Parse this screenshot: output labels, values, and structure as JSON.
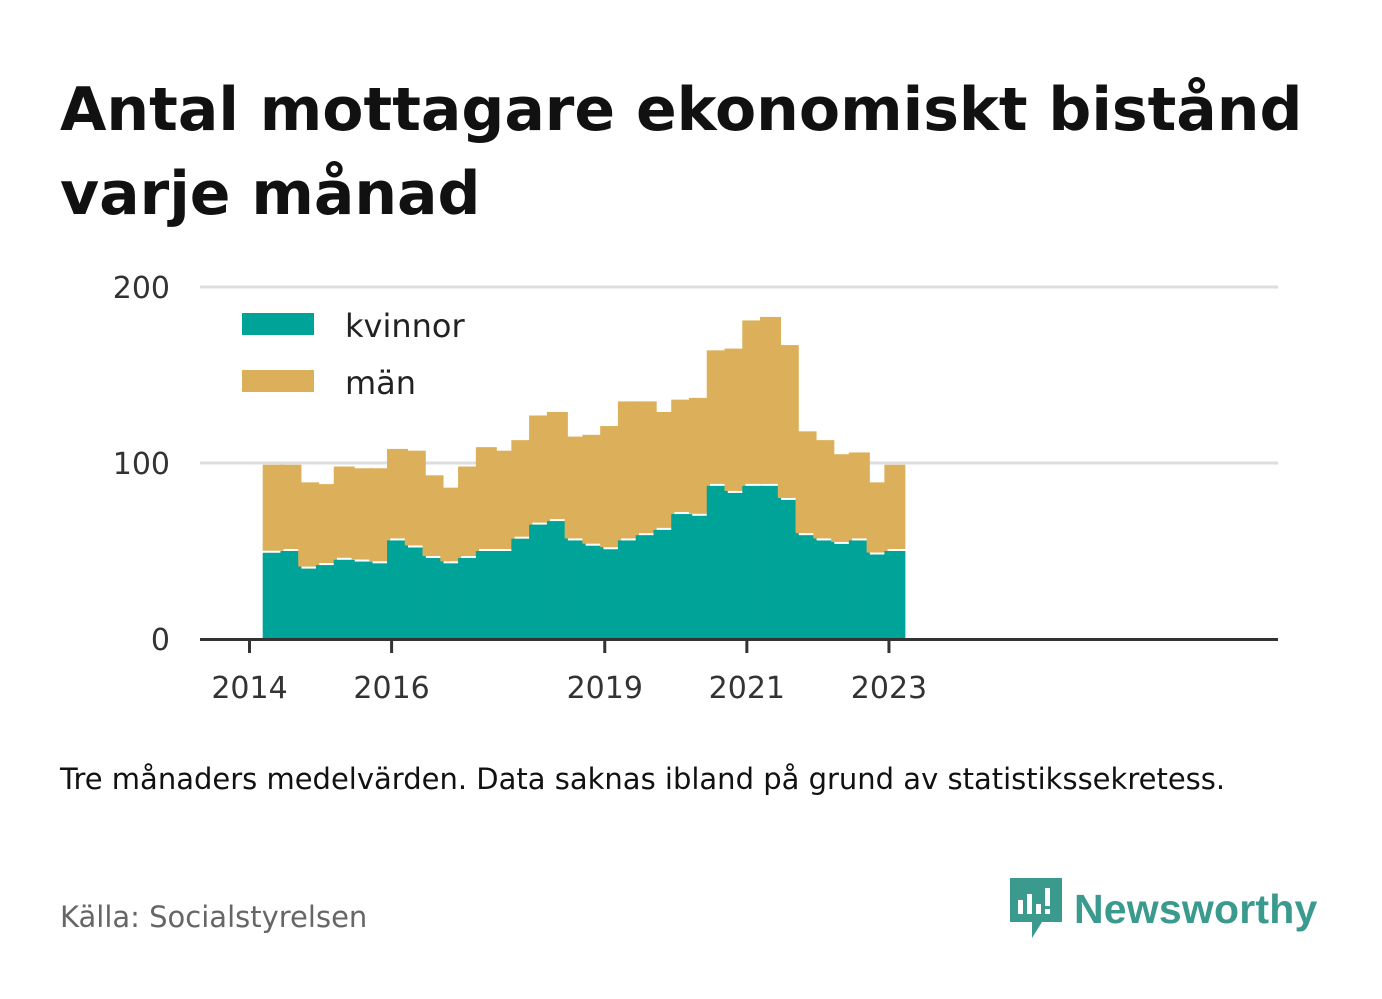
{
  "title": "Antal mottagare ekonomiskt bistånd varje månad",
  "note": "Tre månaders medelvärden. Data saknas ibland på grund av statistikssekretess.",
  "source": "Källa: Socialstyrelsen",
  "brand": {
    "name": "Newsworthy",
    "color": "#3a9a8e"
  },
  "colors": {
    "kvinnor": "#00a398",
    "man": "#dcb05a",
    "grid": "#dddddd",
    "axis": "#333333"
  },
  "chart_data": {
    "type": "bar",
    "stacked": true,
    "x": [
      "2014-05",
      "2014-08",
      "2014-11",
      "2015-02",
      "2015-05",
      "2015-08",
      "2015-11",
      "2016-02",
      "2016-05",
      "2016-08",
      "2016-11",
      "2017-02",
      "2017-05",
      "2017-08",
      "2017-11",
      "2018-02",
      "2018-05",
      "2018-08",
      "2018-11",
      "2019-02",
      "2019-05",
      "2019-08",
      "2019-11",
      "2020-02",
      "2020-05",
      "2020-08",
      "2020-11",
      "2021-02",
      "2021-05",
      "2021-08",
      "2021-11",
      "2022-02",
      "2022-05",
      "2022-08",
      "2022-11",
      "2023-02"
    ],
    "series": [
      {
        "name": "kvinnor",
        "values": [
          49,
          50,
          40,
          42,
          45,
          44,
          43,
          56,
          52,
          46,
          43,
          46,
          50,
          50,
          57,
          65,
          67,
          56,
          53,
          51,
          56,
          59,
          62,
          71,
          70,
          87,
          83,
          87,
          87,
          79,
          59,
          56,
          54,
          56,
          48,
          50
        ]
      },
      {
        "name": "män",
        "values": [
          50,
          49,
          49,
          46,
          53,
          53,
          54,
          52,
          55,
          47,
          43,
          52,
          59,
          57,
          56,
          62,
          62,
          59,
          63,
          70,
          79,
          76,
          67,
          65,
          67,
          77,
          82,
          94,
          96,
          88,
          59,
          57,
          51,
          50,
          41,
          49
        ]
      }
    ],
    "xticks": [
      "2014",
      "2016",
      "2019",
      "2021",
      "2023"
    ],
    "xtick_positions": [
      "2014-01",
      "2016-01",
      "2019-01",
      "2021-01",
      "2023-01"
    ],
    "yticks": [
      "0",
      "100",
      "200"
    ],
    "ylim": [
      0,
      200
    ],
    "grid": true,
    "legend_position": "top-left",
    "title": "Antal mottagare ekonomiskt bistånd varje månad",
    "xlabel": "",
    "ylabel": ""
  }
}
